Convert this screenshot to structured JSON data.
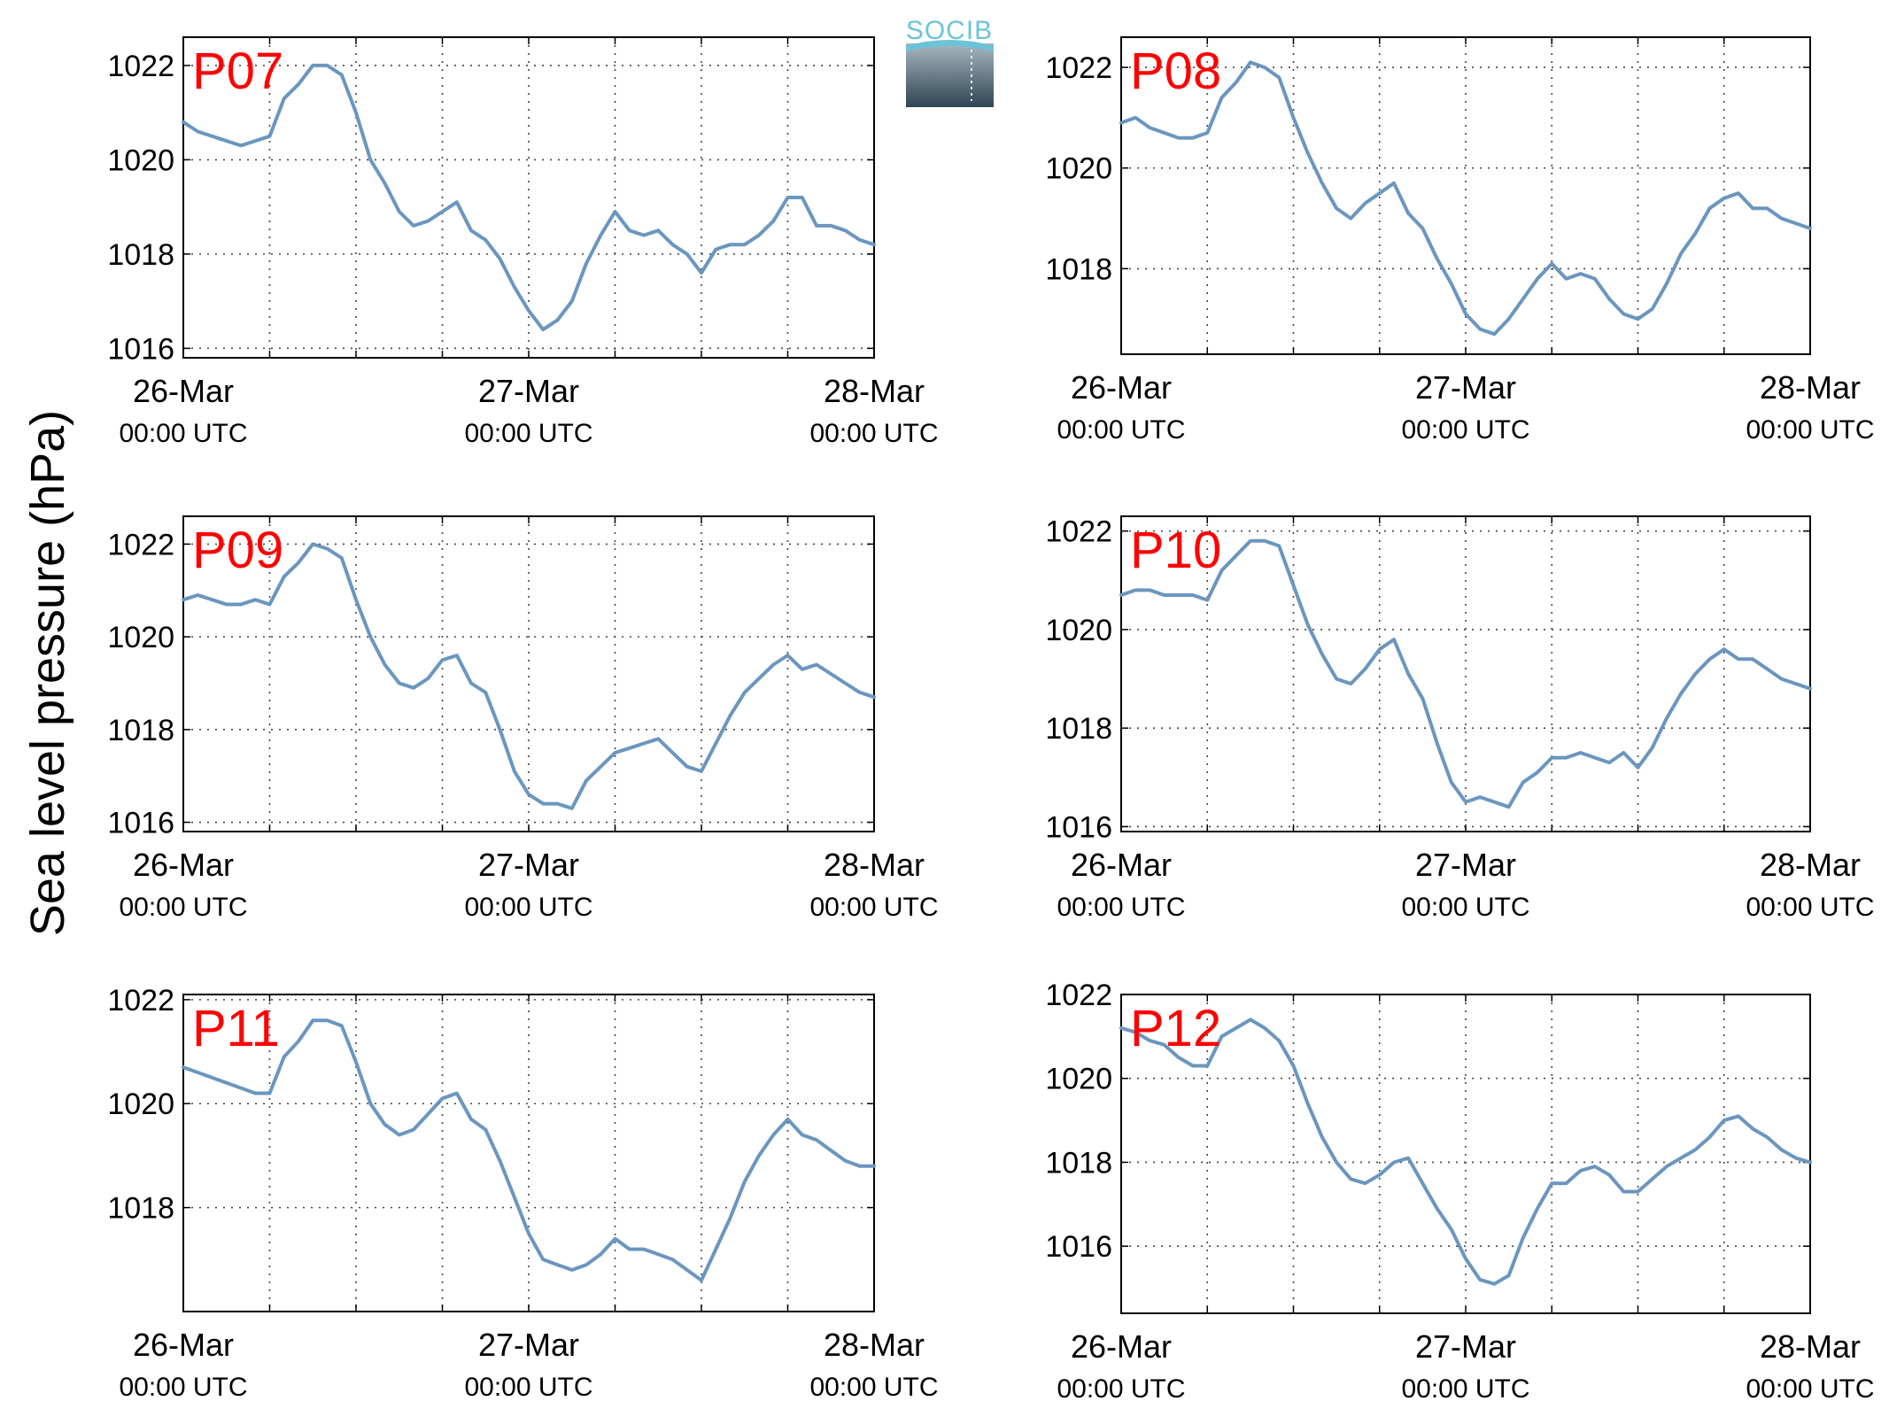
{
  "figure": {
    "ylabel": "Sea level pressure (hPa)",
    "logo_text": "SOCIB",
    "line_color": "#6a96bf",
    "station_color": "#ff0000"
  },
  "chart_data": [
    {
      "type": "line",
      "station": "P07",
      "ylim": [
        1015.8,
        1022.6
      ],
      "yticks": [
        1016,
        1018,
        1020,
        1022
      ],
      "xticks": [
        {
          "date": "26-Mar",
          "time": "00:00 UTC"
        },
        {
          "date": "27-Mar",
          "time": "00:00 UTC"
        },
        {
          "date": "28-Mar",
          "time": "00:00 UTC"
        }
      ],
      "grid": true,
      "x_hours": [
        0,
        48
      ],
      "series": [
        {
          "x": [
            0,
            1,
            2,
            3,
            4,
            5,
            6,
            7,
            8,
            9,
            10,
            11,
            12,
            13,
            14,
            15,
            16,
            17,
            18,
            19,
            20,
            21,
            22,
            23,
            24,
            25,
            26,
            27,
            28,
            29,
            30,
            31,
            32,
            33,
            34,
            35,
            36,
            37,
            38,
            39,
            40,
            41,
            42,
            43,
            44,
            45,
            46,
            47,
            48
          ],
          "values": [
            1020.8,
            1020.6,
            1020.5,
            1020.4,
            1020.3,
            1020.4,
            1020.5,
            1021.3,
            1021.6,
            1022.0,
            1022.0,
            1021.8,
            1021.0,
            1020.0,
            1019.5,
            1018.9,
            1018.6,
            1018.7,
            1018.9,
            1019.1,
            1018.5,
            1018.3,
            1017.9,
            1017.3,
            1016.8,
            1016.4,
            1016.6,
            1017.0,
            1017.8,
            1018.4,
            1018.9,
            1018.5,
            1018.4,
            1018.5,
            1018.2,
            1018.0,
            1017.6,
            1018.1,
            1018.2,
            1018.2,
            1018.4,
            1018.7,
            1019.2,
            1019.2,
            1018.6,
            1018.6,
            1018.5,
            1018.3,
            1018.2
          ]
        }
      ]
    },
    {
      "type": "line",
      "station": "P08",
      "ylim": [
        1016.3,
        1022.6
      ],
      "yticks": [
        1018,
        1020,
        1022
      ],
      "xticks": [
        {
          "date": "26-Mar",
          "time": "00:00 UTC"
        },
        {
          "date": "27-Mar",
          "time": "00:00 UTC"
        },
        {
          "date": "28-Mar",
          "time": "00:00 UTC"
        }
      ],
      "grid": true,
      "x_hours": [
        0,
        48
      ],
      "series": [
        {
          "x": [
            0,
            1,
            2,
            3,
            4,
            5,
            6,
            7,
            8,
            9,
            10,
            11,
            12,
            13,
            14,
            15,
            16,
            17,
            18,
            19,
            20,
            21,
            22,
            23,
            24,
            25,
            26,
            27,
            28,
            29,
            30,
            31,
            32,
            33,
            34,
            35,
            36,
            37,
            38,
            39,
            40,
            41,
            42,
            43,
            44,
            45,
            46,
            47,
            48
          ],
          "values": [
            1020.9,
            1021.0,
            1020.8,
            1020.7,
            1020.6,
            1020.6,
            1020.7,
            1021.4,
            1021.7,
            1022.1,
            1022.0,
            1021.8,
            1021.0,
            1020.3,
            1019.7,
            1019.2,
            1019.0,
            1019.3,
            1019.5,
            1019.7,
            1019.1,
            1018.8,
            1018.2,
            1017.7,
            1017.1,
            1016.8,
            1016.7,
            1017.0,
            1017.4,
            1017.8,
            1018.1,
            1017.8,
            1017.9,
            1017.8,
            1017.4,
            1017.1,
            1017.0,
            1017.2,
            1017.7,
            1018.3,
            1018.7,
            1019.2,
            1019.4,
            1019.5,
            1019.2,
            1019.2,
            1019.0,
            1018.9,
            1018.8
          ]
        }
      ]
    },
    {
      "type": "line",
      "station": "P09",
      "ylim": [
        1015.8,
        1022.6
      ],
      "yticks": [
        1016,
        1018,
        1020,
        1022
      ],
      "xticks": [
        {
          "date": "26-Mar",
          "time": "00:00 UTC"
        },
        {
          "date": "27-Mar",
          "time": "00:00 UTC"
        },
        {
          "date": "28-Mar",
          "time": "00:00 UTC"
        }
      ],
      "grid": true,
      "x_hours": [
        0,
        48
      ],
      "series": [
        {
          "x": [
            0,
            1,
            2,
            3,
            4,
            5,
            6,
            7,
            8,
            9,
            10,
            11,
            12,
            13,
            14,
            15,
            16,
            17,
            18,
            19,
            20,
            21,
            22,
            23,
            24,
            25,
            26,
            27,
            28,
            29,
            30,
            31,
            32,
            33,
            34,
            35,
            36,
            37,
            38,
            39,
            40,
            41,
            42,
            43,
            44,
            45,
            46,
            47,
            48
          ],
          "values": [
            1020.8,
            1020.9,
            1020.8,
            1020.7,
            1020.7,
            1020.8,
            1020.7,
            1021.3,
            1021.6,
            1022.0,
            1021.9,
            1021.7,
            1020.8,
            1020.0,
            1019.4,
            1019.0,
            1018.9,
            1019.1,
            1019.5,
            1019.6,
            1019.0,
            1018.8,
            1018.0,
            1017.1,
            1016.6,
            1016.4,
            1016.4,
            1016.3,
            1016.9,
            1017.2,
            1017.5,
            1017.6,
            1017.7,
            1017.8,
            1017.5,
            1017.2,
            1017.1,
            1017.7,
            1018.3,
            1018.8,
            1019.1,
            1019.4,
            1019.6,
            1019.3,
            1019.4,
            1019.2,
            1019.0,
            1018.8,
            1018.7
          ]
        }
      ]
    },
    {
      "type": "line",
      "station": "P10",
      "ylim": [
        1015.9,
        1022.3
      ],
      "yticks": [
        1016,
        1018,
        1020,
        1022
      ],
      "xticks": [
        {
          "date": "26-Mar",
          "time": "00:00 UTC"
        },
        {
          "date": "27-Mar",
          "time": "00:00 UTC"
        },
        {
          "date": "28-Mar",
          "time": "00:00 UTC"
        }
      ],
      "grid": true,
      "x_hours": [
        0,
        48
      ],
      "series": [
        {
          "x": [
            0,
            1,
            2,
            3,
            4,
            5,
            6,
            7,
            8,
            9,
            10,
            11,
            12,
            13,
            14,
            15,
            16,
            17,
            18,
            19,
            20,
            21,
            22,
            23,
            24,
            25,
            26,
            27,
            28,
            29,
            30,
            31,
            32,
            33,
            34,
            35,
            36,
            37,
            38,
            39,
            40,
            41,
            42,
            43,
            44,
            45,
            46,
            47,
            48
          ],
          "values": [
            1020.7,
            1020.8,
            1020.8,
            1020.7,
            1020.7,
            1020.7,
            1020.6,
            1021.2,
            1021.5,
            1021.8,
            1021.8,
            1021.7,
            1020.9,
            1020.1,
            1019.5,
            1019.0,
            1018.9,
            1019.2,
            1019.6,
            1019.8,
            1019.1,
            1018.6,
            1017.7,
            1016.9,
            1016.5,
            1016.6,
            1016.5,
            1016.4,
            1016.9,
            1017.1,
            1017.4,
            1017.4,
            1017.5,
            1017.4,
            1017.3,
            1017.5,
            1017.2,
            1017.6,
            1018.2,
            1018.7,
            1019.1,
            1019.4,
            1019.6,
            1019.4,
            1019.4,
            1019.2,
            1019.0,
            1018.9,
            1018.8
          ]
        }
      ]
    },
    {
      "type": "line",
      "station": "P11",
      "ylim": [
        1016.0,
        1022.1
      ],
      "yticks": [
        1018,
        1020,
        1022
      ],
      "xticks": [
        {
          "date": "26-Mar",
          "time": "00:00 UTC"
        },
        {
          "date": "27-Mar",
          "time": "00:00 UTC"
        },
        {
          "date": "28-Mar",
          "time": "00:00 UTC"
        }
      ],
      "grid": true,
      "x_hours": [
        0,
        48
      ],
      "series": [
        {
          "x": [
            0,
            1,
            2,
            3,
            4,
            5,
            6,
            7,
            8,
            9,
            10,
            11,
            12,
            13,
            14,
            15,
            16,
            17,
            18,
            19,
            20,
            21,
            22,
            23,
            24,
            25,
            26,
            27,
            28,
            29,
            30,
            31,
            32,
            33,
            34,
            35,
            36,
            37,
            38,
            39,
            40,
            41,
            42,
            43,
            44,
            45,
            46,
            47,
            48
          ],
          "values": [
            1020.7,
            1020.6,
            1020.5,
            1020.4,
            1020.3,
            1020.2,
            1020.2,
            1020.9,
            1021.2,
            1021.6,
            1021.6,
            1021.5,
            1020.8,
            1020.0,
            1019.6,
            1019.4,
            1019.5,
            1019.8,
            1020.1,
            1020.2,
            1019.7,
            1019.5,
            1018.9,
            1018.2,
            1017.5,
            1017.0,
            1016.9,
            1016.8,
            1016.9,
            1017.1,
            1017.4,
            1017.2,
            1017.2,
            1017.1,
            1017.0,
            1016.8,
            1016.6,
            1017.2,
            1017.8,
            1018.5,
            1019.0,
            1019.4,
            1019.7,
            1019.4,
            1019.3,
            1019.1,
            1018.9,
            1018.8,
            1018.8
          ]
        }
      ]
    },
    {
      "type": "line",
      "station": "P12",
      "ylim": [
        1014.4,
        1022.0
      ],
      "yticks": [
        1016,
        1018,
        1020,
        1022
      ],
      "xticks": [
        {
          "date": "26-Mar",
          "time": "00:00 UTC"
        },
        {
          "date": "27-Mar",
          "time": "00:00 UTC"
        },
        {
          "date": "28-Mar",
          "time": "00:00 UTC"
        }
      ],
      "grid": true,
      "x_hours": [
        0,
        48
      ],
      "series": [
        {
          "x": [
            0,
            1,
            2,
            3,
            4,
            5,
            6,
            7,
            8,
            9,
            10,
            11,
            12,
            13,
            14,
            15,
            16,
            17,
            18,
            19,
            20,
            21,
            22,
            23,
            24,
            25,
            26,
            27,
            28,
            29,
            30,
            31,
            32,
            33,
            34,
            35,
            36,
            37,
            38,
            39,
            40,
            41,
            42,
            43,
            44,
            45,
            46,
            47,
            48
          ],
          "values": [
            1021.2,
            1021.1,
            1020.9,
            1020.8,
            1020.5,
            1020.3,
            1020.3,
            1021.0,
            1021.2,
            1021.4,
            1021.2,
            1020.9,
            1020.3,
            1019.4,
            1018.6,
            1018.0,
            1017.6,
            1017.5,
            1017.7,
            1018.0,
            1018.1,
            1017.5,
            1016.9,
            1016.4,
            1015.7,
            1015.2,
            1015.1,
            1015.3,
            1016.2,
            1016.9,
            1017.5,
            1017.5,
            1017.8,
            1017.9,
            1017.7,
            1017.3,
            1017.3,
            1017.6,
            1017.9,
            1018.1,
            1018.3,
            1018.6,
            1019.0,
            1019.1,
            1018.8,
            1018.6,
            1018.3,
            1018.1,
            1018.0
          ]
        }
      ]
    }
  ]
}
